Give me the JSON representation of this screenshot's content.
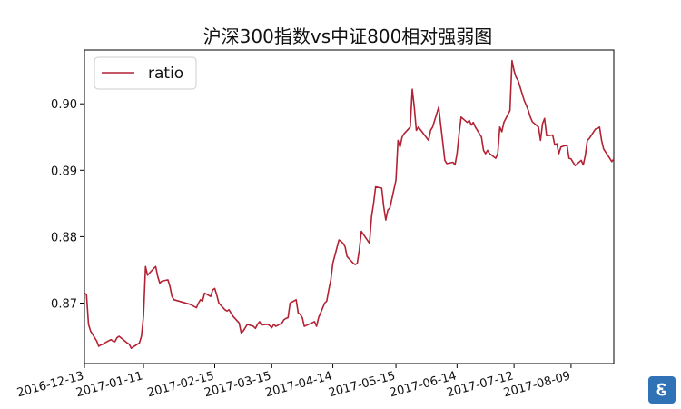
{
  "chart_data": {
    "type": "line",
    "title": "沪深300指数vs中证800相对强弱图",
    "xlabel": "",
    "ylabel": "",
    "x_tick_labels": [
      "2016-12-13",
      "2017-01-11",
      "2017-02-15",
      "2017-03-15",
      "2017-04-14",
      "2017-05-15",
      "2017-06-14",
      "2017-07-12",
      "2017-08-09"
    ],
    "y_ticks": [
      0.87,
      0.88,
      0.89,
      0.9
    ],
    "y_tick_labels": [
      "0.87",
      "0.88",
      "0.89",
      "0.90"
    ],
    "ylim": [
      0.8609,
      0.9081
    ],
    "grid": false,
    "legend_position": "upper-left",
    "series": [
      {
        "name": "ratio",
        "color": "#b22234",
        "points": [
          [
            "2016-12-13",
            0.8715
          ],
          [
            "2016-12-14",
            0.8713
          ],
          [
            "2016-12-15",
            0.8668
          ],
          [
            "2016-12-16",
            0.8658
          ],
          [
            "2016-12-19",
            0.8643
          ],
          [
            "2016-12-20",
            0.8635
          ],
          [
            "2016-12-21",
            0.8637
          ],
          [
            "2016-12-22",
            0.8638
          ],
          [
            "2016-12-23",
            0.864
          ],
          [
            "2016-12-26",
            0.8645
          ],
          [
            "2016-12-27",
            0.8643
          ],
          [
            "2016-12-28",
            0.8642
          ],
          [
            "2016-12-29",
            0.8648
          ],
          [
            "2016-12-30",
            0.865
          ],
          [
            "2017-01-03",
            0.864
          ],
          [
            "2017-01-04",
            0.8638
          ],
          [
            "2017-01-05",
            0.8632
          ],
          [
            "2017-01-06",
            0.8634
          ],
          [
            "2017-01-09",
            0.864
          ],
          [
            "2017-01-10",
            0.865
          ],
          [
            "2017-01-11",
            0.868
          ],
          [
            "2017-01-12",
            0.8755
          ],
          [
            "2017-01-13",
            0.8742
          ],
          [
            "2017-01-16",
            0.8752
          ],
          [
            "2017-01-17",
            0.8755
          ],
          [
            "2017-01-18",
            0.874
          ],
          [
            "2017-01-19",
            0.873
          ],
          [
            "2017-01-20",
            0.8733
          ],
          [
            "2017-01-23",
            0.8735
          ],
          [
            "2017-01-24",
            0.8725
          ],
          [
            "2017-01-25",
            0.871
          ],
          [
            "2017-01-26",
            0.8705
          ],
          [
            "2017-02-03",
            0.8698
          ],
          [
            "2017-02-06",
            0.8693
          ],
          [
            "2017-02-07",
            0.87
          ],
          [
            "2017-02-08",
            0.8705
          ],
          [
            "2017-02-09",
            0.8703
          ],
          [
            "2017-02-10",
            0.8715
          ],
          [
            "2017-02-13",
            0.871
          ],
          [
            "2017-02-14",
            0.872
          ],
          [
            "2017-02-15",
            0.8722
          ],
          [
            "2017-02-16",
            0.8712
          ],
          [
            "2017-02-17",
            0.87
          ],
          [
            "2017-02-20",
            0.869
          ],
          [
            "2017-02-21",
            0.8688
          ],
          [
            "2017-02-22",
            0.869
          ],
          [
            "2017-02-23",
            0.8685
          ],
          [
            "2017-02-24",
            0.868
          ],
          [
            "2017-02-27",
            0.867
          ],
          [
            "2017-02-28",
            0.8655
          ],
          [
            "2017-03-01",
            0.8658
          ],
          [
            "2017-03-02",
            0.8663
          ],
          [
            "2017-03-03",
            0.8668
          ],
          [
            "2017-03-06",
            0.8665
          ],
          [
            "2017-03-07",
            0.8662
          ],
          [
            "2017-03-08",
            0.8668
          ],
          [
            "2017-03-09",
            0.8672
          ],
          [
            "2017-03-10",
            0.8667
          ],
          [
            "2017-03-13",
            0.8668
          ],
          [
            "2017-03-14",
            0.8666
          ],
          [
            "2017-03-15",
            0.8663
          ],
          [
            "2017-03-16",
            0.8668
          ],
          [
            "2017-03-17",
            0.8665
          ],
          [
            "2017-03-20",
            0.867
          ],
          [
            "2017-03-21",
            0.8675
          ],
          [
            "2017-03-22",
            0.8677
          ],
          [
            "2017-03-23",
            0.8678
          ],
          [
            "2017-03-24",
            0.87
          ],
          [
            "2017-03-27",
            0.8705
          ],
          [
            "2017-03-28",
            0.8685
          ],
          [
            "2017-03-29",
            0.8683
          ],
          [
            "2017-03-30",
            0.8678
          ],
          [
            "2017-03-31",
            0.8665
          ],
          [
            "2017-04-05",
            0.8672
          ],
          [
            "2017-04-06",
            0.8665
          ],
          [
            "2017-04-07",
            0.8678
          ],
          [
            "2017-04-10",
            0.87
          ],
          [
            "2017-04-11",
            0.8703
          ],
          [
            "2017-04-12",
            0.872
          ],
          [
            "2017-04-13",
            0.8735
          ],
          [
            "2017-04-14",
            0.876
          ],
          [
            "2017-04-17",
            0.8795
          ],
          [
            "2017-04-18",
            0.8793
          ],
          [
            "2017-04-19",
            0.879
          ],
          [
            "2017-04-20",
            0.8785
          ],
          [
            "2017-04-21",
            0.877
          ],
          [
            "2017-04-24",
            0.876
          ],
          [
            "2017-04-25",
            0.8758
          ],
          [
            "2017-04-26",
            0.876
          ],
          [
            "2017-04-27",
            0.878
          ],
          [
            "2017-04-28",
            0.8808
          ],
          [
            "2017-05-02",
            0.879
          ],
          [
            "2017-05-03",
            0.883
          ],
          [
            "2017-05-04",
            0.885
          ],
          [
            "2017-05-05",
            0.8875
          ],
          [
            "2017-05-08",
            0.8873
          ],
          [
            "2017-05-09",
            0.8845
          ],
          [
            "2017-05-10",
            0.8825
          ],
          [
            "2017-05-11",
            0.884
          ],
          [
            "2017-05-12",
            0.8843
          ],
          [
            "2017-05-15",
            0.8885
          ],
          [
            "2017-05-16",
            0.8945
          ],
          [
            "2017-05-17",
            0.8935
          ],
          [
            "2017-05-18",
            0.895
          ],
          [
            "2017-05-19",
            0.8955
          ],
          [
            "2017-05-22",
            0.8965
          ],
          [
            "2017-05-23",
            0.9022
          ],
          [
            "2017-05-24",
            0.8995
          ],
          [
            "2017-05-25",
            0.896
          ],
          [
            "2017-05-26",
            0.8965
          ],
          [
            "2017-05-31",
            0.8945
          ],
          [
            "2017-06-01",
            0.896
          ],
          [
            "2017-06-02",
            0.8965
          ],
          [
            "2017-06-05",
            0.8995
          ],
          [
            "2017-06-06",
            0.8968
          ],
          [
            "2017-06-07",
            0.8942
          ],
          [
            "2017-06-08",
            0.8915
          ],
          [
            "2017-06-09",
            0.891
          ],
          [
            "2017-06-12",
            0.8912
          ],
          [
            "2017-06-13",
            0.8908
          ],
          [
            "2017-06-14",
            0.8925
          ],
          [
            "2017-06-15",
            0.8955
          ],
          [
            "2017-06-16",
            0.898
          ],
          [
            "2017-06-19",
            0.8972
          ],
          [
            "2017-06-20",
            0.8975
          ],
          [
            "2017-06-21",
            0.8968
          ],
          [
            "2017-06-22",
            0.8972
          ],
          [
            "2017-06-23",
            0.8965
          ],
          [
            "2017-06-26",
            0.895
          ],
          [
            "2017-06-27",
            0.893
          ],
          [
            "2017-06-28",
            0.8925
          ],
          [
            "2017-06-29",
            0.893
          ],
          [
            "2017-06-30",
            0.8925
          ],
          [
            "2017-07-03",
            0.8918
          ],
          [
            "2017-07-04",
            0.8925
          ],
          [
            "2017-07-05",
            0.8965
          ],
          [
            "2017-07-06",
            0.8958
          ],
          [
            "2017-07-07",
            0.8972
          ],
          [
            "2017-07-10",
            0.899
          ],
          [
            "2017-07-11",
            0.9065
          ],
          [
            "2017-07-12",
            0.905
          ],
          [
            "2017-07-13",
            0.904
          ],
          [
            "2017-07-14",
            0.9035
          ],
          [
            "2017-07-17",
            0.9005
          ],
          [
            "2017-07-18",
            0.8998
          ],
          [
            "2017-07-19",
            0.899
          ],
          [
            "2017-07-20",
            0.898
          ],
          [
            "2017-07-21",
            0.8973
          ],
          [
            "2017-07-24",
            0.8965
          ],
          [
            "2017-07-25",
            0.8945
          ],
          [
            "2017-07-26",
            0.897
          ],
          [
            "2017-07-27",
            0.8978
          ],
          [
            "2017-07-28",
            0.8952
          ],
          [
            "2017-07-31",
            0.8953
          ],
          [
            "2017-08-01",
            0.8938
          ],
          [
            "2017-08-02",
            0.894
          ],
          [
            "2017-08-03",
            0.8925
          ],
          [
            "2017-08-04",
            0.8935
          ],
          [
            "2017-08-07",
            0.8938
          ],
          [
            "2017-08-08",
            0.8918
          ],
          [
            "2017-08-09",
            0.8917
          ],
          [
            "2017-08-10",
            0.8912
          ],
          [
            "2017-08-11",
            0.8907
          ],
          [
            "2017-08-14",
            0.8915
          ],
          [
            "2017-08-15",
            0.8908
          ],
          [
            "2017-08-16",
            0.8922
          ],
          [
            "2017-08-17",
            0.8945
          ],
          [
            "2017-08-18",
            0.8948
          ],
          [
            "2017-08-21",
            0.8962
          ],
          [
            "2017-08-22",
            0.8963
          ],
          [
            "2017-08-23",
            0.8965
          ],
          [
            "2017-08-24",
            0.8945
          ],
          [
            "2017-08-25",
            0.8932
          ],
          [
            "2017-08-28",
            0.8918
          ],
          [
            "2017-08-29",
            0.8913
          ],
          [
            "2017-08-30",
            0.8917
          ]
        ]
      }
    ]
  },
  "watermark": {
    "glyph": "Ꮛ",
    "color": "#2f73b6"
  }
}
